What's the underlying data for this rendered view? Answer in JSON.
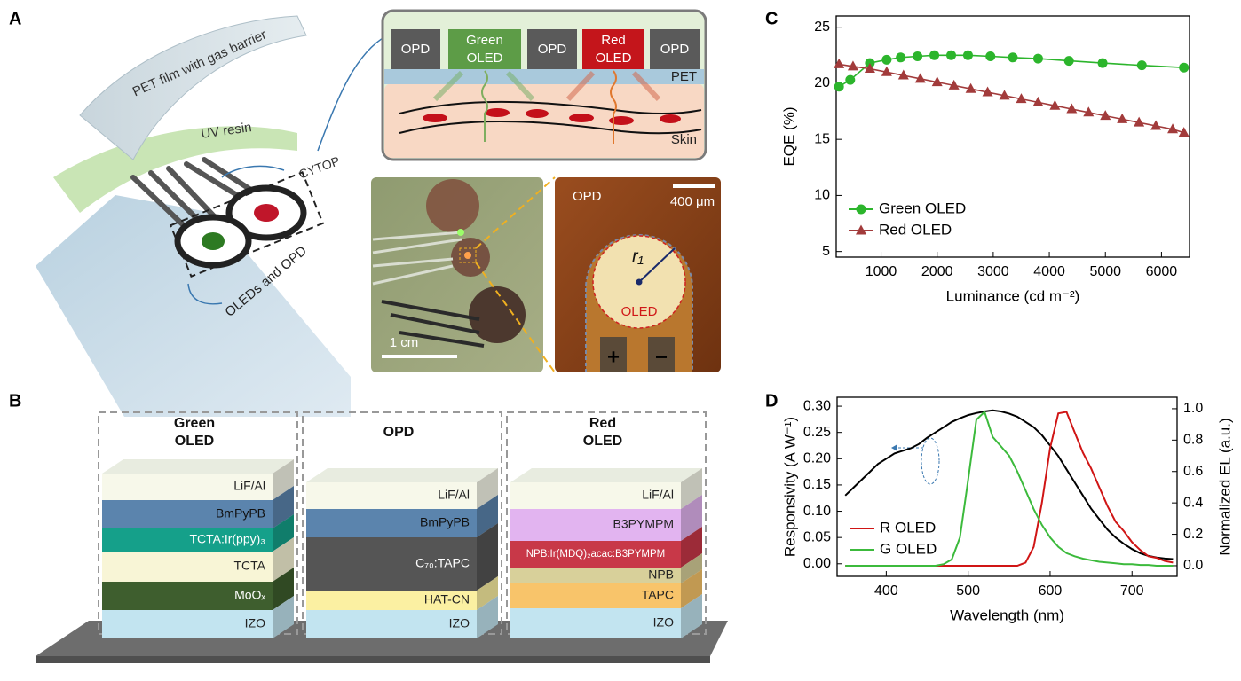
{
  "panel_labels": [
    "A",
    "B",
    "C",
    "D"
  ],
  "panel_a": {
    "film_labels": [
      "PET film with gas barrier",
      "UV resin",
      "CYTOP",
      "OLEDs and OPD"
    ],
    "schematic": {
      "pixels": [
        "OPD",
        [
          "Green",
          "OLED"
        ],
        "OPD",
        [
          "Red",
          "OLED"
        ],
        "OPD"
      ],
      "layers": [
        "PET",
        "Skin"
      ]
    },
    "photo": {
      "scale_bar": "1 cm"
    },
    "micrograph": {
      "title": "OPD",
      "scale_bar": "400 μm",
      "radius": "r₁",
      "region": "OLED",
      "terminals": [
        "+",
        "−"
      ]
    }
  },
  "panel_b": {
    "stacks": [
      {
        "header": [
          "Green",
          "OLED"
        ],
        "layers": [
          "LiF/Al",
          "BmPyPB",
          "TCTA:Ir(ppy)₃",
          "TCTA",
          "MoOₓ",
          "IZO"
        ]
      },
      {
        "header": [
          "OPD"
        ],
        "layers": [
          "LiF/Al",
          "BmPyPB",
          "C₇₀:TAPC",
          "HAT-CN",
          "IZO"
        ]
      },
      {
        "header": [
          "Red",
          "OLED"
        ],
        "layers": [
          "LiF/Al",
          "B3PYMPM",
          "NPB:Ir(MDQ)₂acac:B3PYMPM",
          "NPB",
          "TAPC",
          "IZO"
        ]
      }
    ]
  },
  "chart_data": [
    {
      "type": "line",
      "ylabel": "EQE (%)",
      "xlabel": "Luminance (cd m⁻²)",
      "xlim": [
        200,
        6500
      ],
      "xticks": [
        1000,
        2000,
        3000,
        4000,
        5000,
        6000
      ],
      "ylim": [
        4.5,
        26
      ],
      "yticks": [
        5,
        10,
        15,
        20,
        25
      ],
      "legend": "lower left",
      "series": [
        {
          "name": "Green OLED",
          "color": "#2cb52c",
          "marker": "circle",
          "x": [
            250,
            450,
            800,
            1100,
            1350,
            1650,
            1950,
            2250,
            2550,
            2950,
            3350,
            3800,
            4350,
            4950,
            5650,
            6400
          ],
          "values": [
            19.7,
            20.3,
            21.8,
            22.1,
            22.3,
            22.4,
            22.5,
            22.5,
            22.5,
            22.4,
            22.3,
            22.2,
            22.0,
            21.8,
            21.6,
            21.4
          ]
        },
        {
          "name": "Red OLED",
          "color": "#a23b3b",
          "marker": "triangle",
          "x": [
            250,
            500,
            800,
            1100,
            1400,
            1700,
            2000,
            2300,
            2600,
            2900,
            3200,
            3500,
            3800,
            4100,
            4400,
            4700,
            5000,
            5300,
            5600,
            5900,
            6200,
            6400
          ],
          "values": [
            21.7,
            21.5,
            21.3,
            21.0,
            20.7,
            20.4,
            20.1,
            19.8,
            19.5,
            19.2,
            18.9,
            18.6,
            18.3,
            18.0,
            17.7,
            17.4,
            17.1,
            16.8,
            16.5,
            16.2,
            15.9,
            15.6
          ]
        }
      ]
    },
    {
      "type": "line",
      "ylabel": "Responsivity (A W⁻¹)",
      "y2label": "Normalized EL (a.u.)",
      "xlabel": "Wavelength (nm)",
      "xlim": [
        340,
        755
      ],
      "xticks": [
        400,
        500,
        600,
        700
      ],
      "ylim": [
        -0.024,
        0.317
      ],
      "yticks": [
        {
          "value": 0,
          "label": "0.00"
        },
        0.05,
        {
          "value": 0.1,
          "label": "0.10"
        },
        0.15,
        {
          "value": 0.2,
          "label": "0.20"
        },
        0.25,
        {
          "value": 0.3,
          "label": "0.30"
        }
      ],
      "y2lim": [
        -0.068,
        1.073
      ],
      "y2ticks": [
        {
          "value": 0,
          "label": "0.0"
        },
        0.2,
        0.4,
        0.6,
        0.8,
        {
          "value": 1,
          "label": "1.0"
        }
      ],
      "legend": "lower left",
      "x": [
        350,
        360,
        370,
        380,
        390,
        400,
        410,
        420,
        430,
        440,
        450,
        460,
        470,
        480,
        490,
        500,
        510,
        520,
        530,
        540,
        550,
        560,
        570,
        580,
        590,
        600,
        610,
        620,
        630,
        640,
        650,
        660,
        670,
        680,
        690,
        700,
        710,
        720,
        730,
        740,
        750
      ],
      "series": [
        {
          "color": "#000000",
          "values": [
            0.13,
            0.145,
            0.16,
            0.175,
            0.19,
            0.2,
            0.21,
            0.215,
            0.22,
            0.228,
            0.24,
            0.25,
            0.26,
            0.27,
            0.277,
            0.283,
            0.287,
            0.29,
            0.292,
            0.29,
            0.286,
            0.28,
            0.27,
            0.26,
            0.245,
            0.225,
            0.205,
            0.18,
            0.155,
            0.13,
            0.105,
            0.085,
            0.065,
            0.05,
            0.038,
            0.028,
            0.02,
            0.015,
            0.012,
            0.01,
            0.009
          ]
        },
        {
          "name": "R OLED",
          "color": "#d01515",
          "axis": "y2",
          "values": [
            0,
            0,
            0,
            0,
            0,
            0,
            0,
            0,
            0,
            0,
            0,
            0,
            0,
            0,
            0,
            0,
            0,
            0,
            0,
            0,
            0,
            0,
            0.02,
            0.12,
            0.4,
            0.75,
            0.97,
            0.98,
            0.85,
            0.72,
            0.62,
            0.5,
            0.38,
            0.28,
            0.22,
            0.15,
            0.1,
            0.06,
            0.05,
            0.03,
            0.02
          ]
        },
        {
          "name": "G OLED",
          "color": "#3cba3c",
          "axis": "y2",
          "values": [
            0,
            0,
            0,
            0,
            0,
            0,
            0,
            0,
            0,
            0,
            0,
            0,
            0.01,
            0.04,
            0.18,
            0.55,
            0.93,
            0.98,
            0.82,
            0.76,
            0.7,
            0.6,
            0.48,
            0.36,
            0.26,
            0.18,
            0.12,
            0.08,
            0.06,
            0.045,
            0.035,
            0.025,
            0.02,
            0.015,
            0.01,
            0.01,
            0.005,
            0.005,
            0,
            0,
            0
          ]
        }
      ]
    }
  ]
}
